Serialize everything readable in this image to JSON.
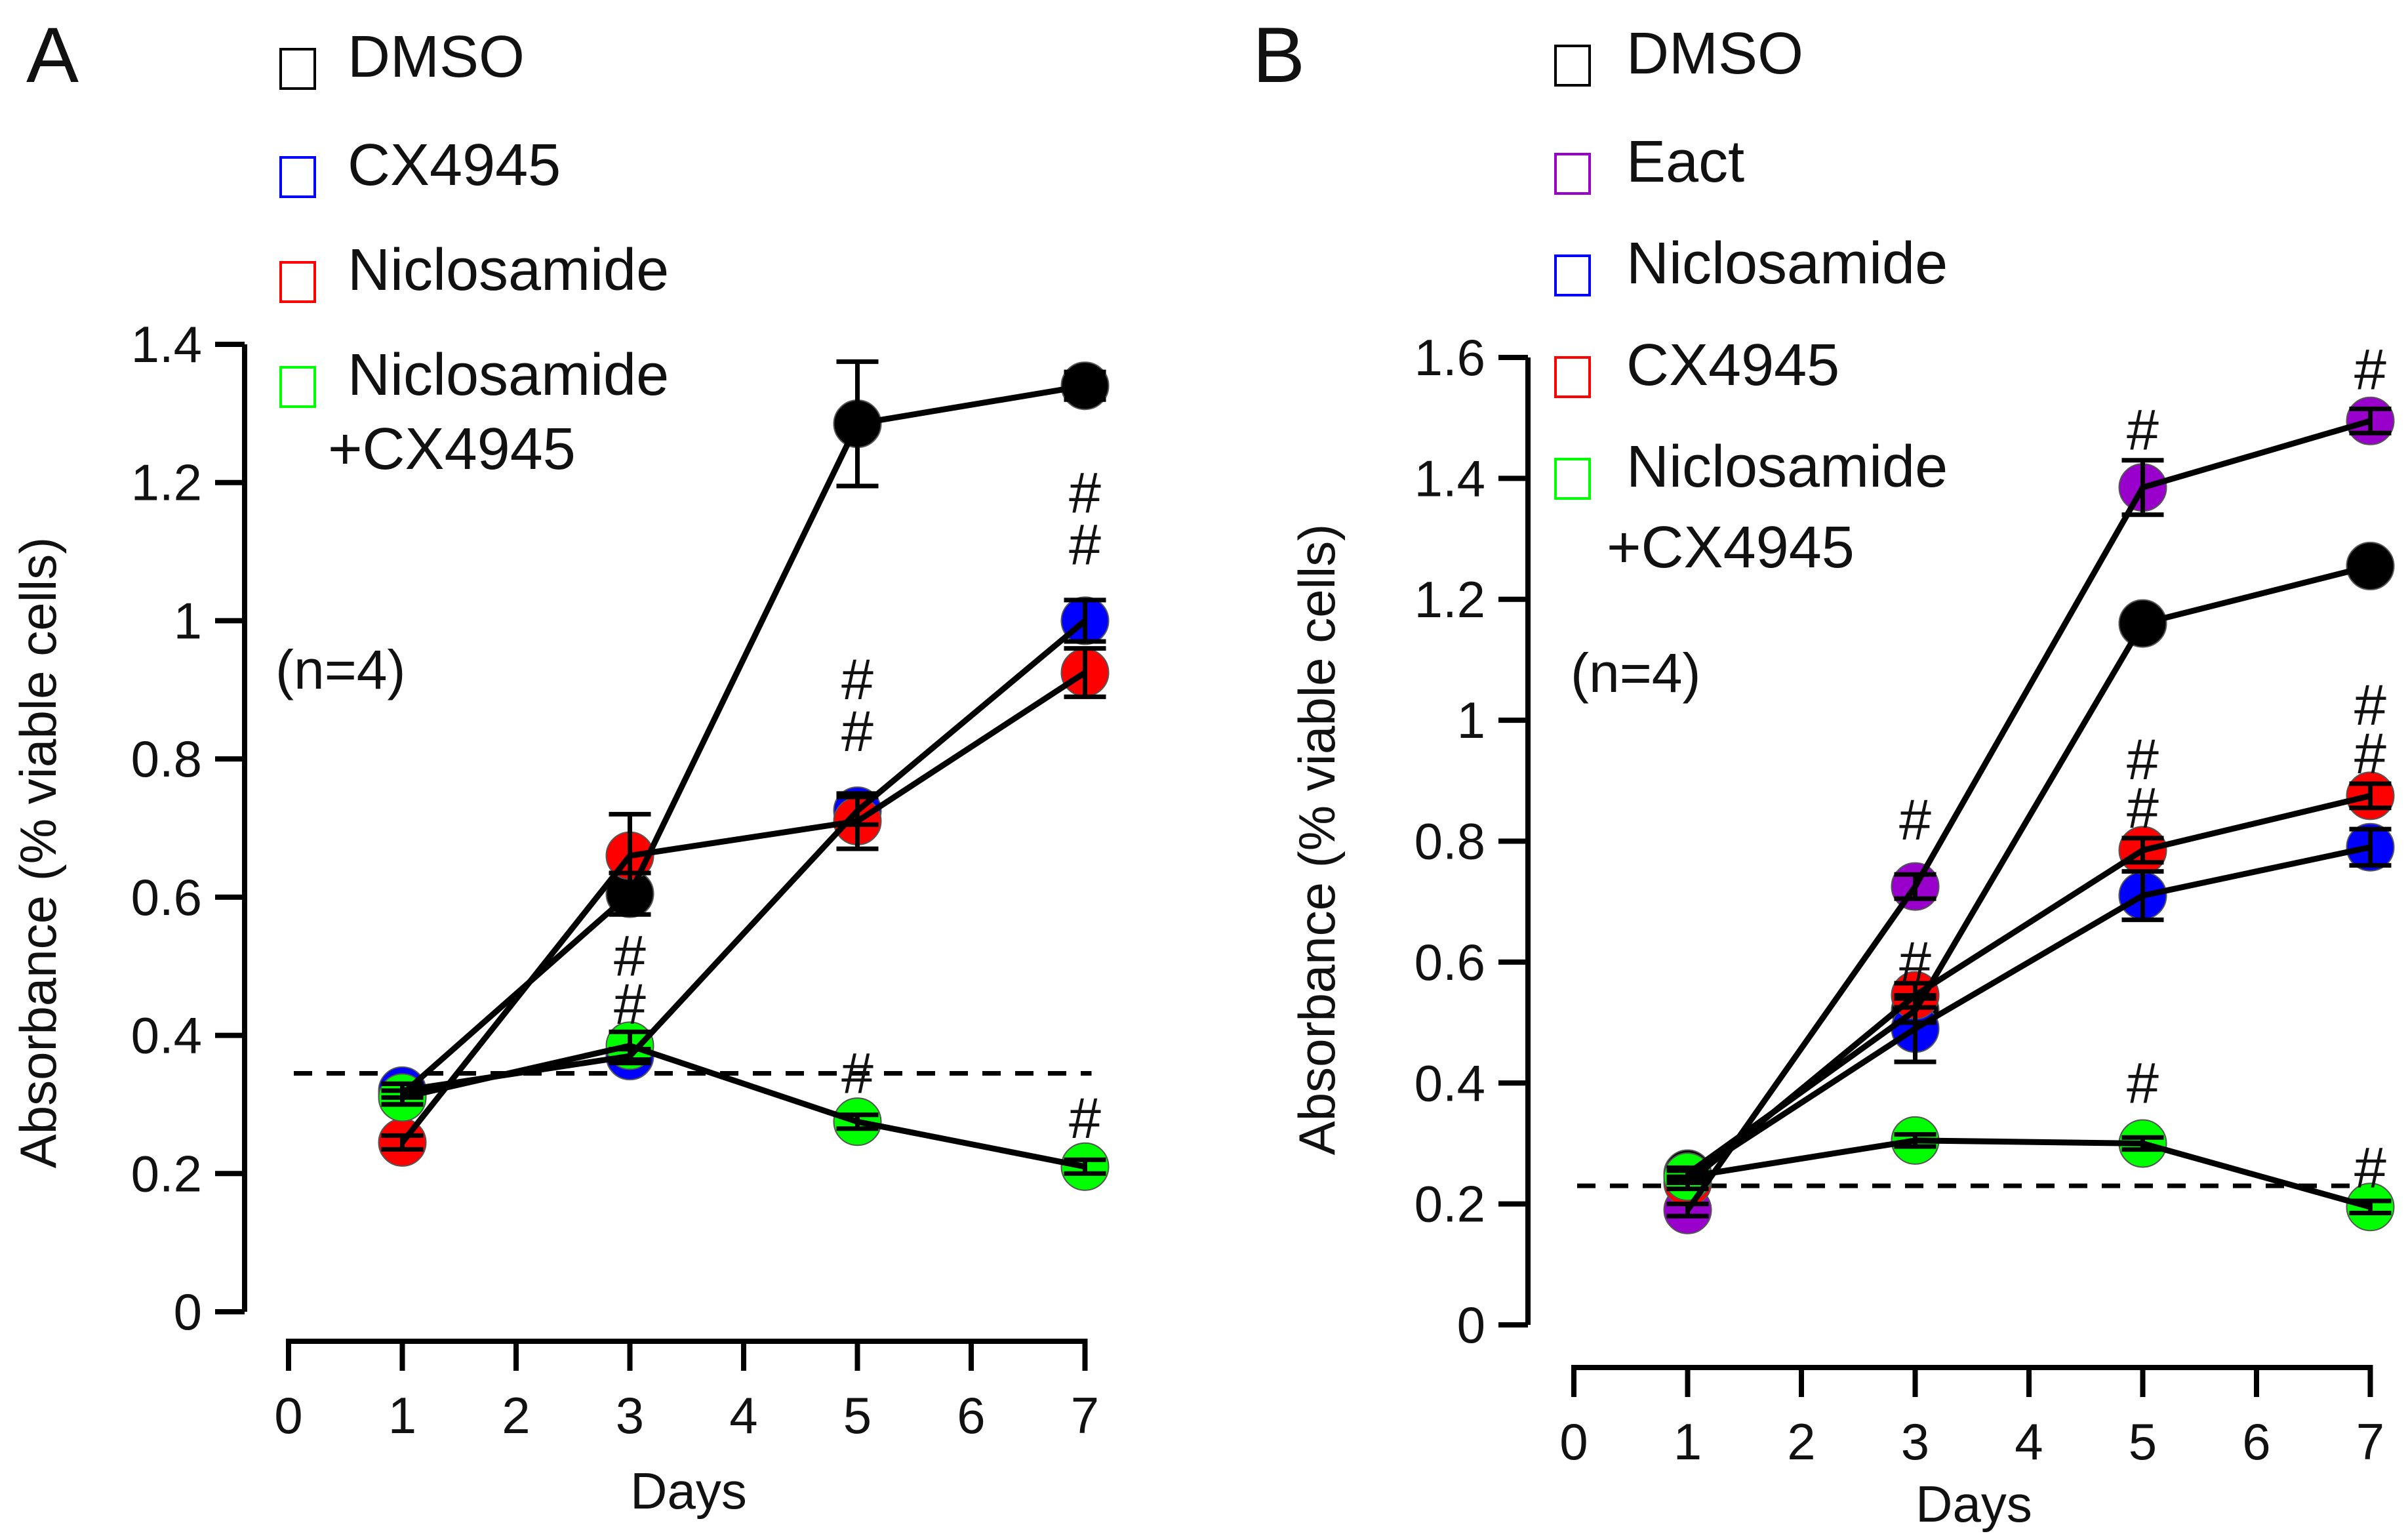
{
  "chart_data": [
    {
      "type": "line",
      "panel_label": "A",
      "annotation": "(n=4)",
      "xlabel": "Days",
      "ylabel": "Absorbance (% viable cells)",
      "xlim": [
        0,
        7
      ],
      "ylim": [
        0,
        1.4
      ],
      "xticks": [
        0,
        1,
        2,
        3,
        4,
        5,
        6,
        7
      ],
      "xtick_labels": [
        "0",
        "1",
        "2",
        "3",
        "4",
        "5",
        "6",
        "7"
      ],
      "yticks": [
        0,
        0.2,
        0.4,
        0.6,
        0.8,
        1,
        1.2,
        1.4
      ],
      "ytick_labels": [
        "0",
        "0.2",
        "0.4",
        "0.6",
        "0.8",
        "1",
        "1.2",
        "1.4"
      ],
      "baseline": 0.345,
      "legend": [
        {
          "label": "DMSO",
          "color": "#000000"
        },
        {
          "label": "CX4945",
          "color": "#0000ff"
        },
        {
          "label": "Niclosamide",
          "color": "#ff0000"
        },
        {
          "label": "Niclosamide",
          "label2": "+CX4945",
          "color": "#00ff00"
        }
      ],
      "series": [
        {
          "name": "DMSO",
          "color": "#000000",
          "x": [
            1,
            3,
            5,
            7
          ],
          "values": [
            0.315,
            0.605,
            1.285,
            1.34
          ],
          "errors": [
            0.015,
            0.03,
            0.09,
            0.02
          ]
        },
        {
          "name": "CX4945",
          "color": "#0000ff",
          "x": [
            1,
            3,
            5,
            7
          ],
          "values": [
            0.32,
            0.37,
            0.725,
            1.0
          ],
          "errors": [
            0.01,
            0.01,
            0.02,
            0.03
          ]
        },
        {
          "name": "Niclosamide",
          "color": "#ff0000",
          "x": [
            1,
            3,
            5,
            7
          ],
          "values": [
            0.245,
            0.66,
            0.71,
            0.925
          ],
          "errors": [
            0.01,
            0.06,
            0.04,
            0.035
          ]
        },
        {
          "name": "Niclosamide+CX4945",
          "color": "#00ff00",
          "x": [
            1,
            3,
            5,
            7
          ],
          "values": [
            0.31,
            0.385,
            0.275,
            0.21
          ],
          "errors": [
            0.01,
            0.02,
            0.01,
            0.01
          ]
        }
      ],
      "marks": [
        {
          "x": 3,
          "y": 0.445,
          "text": "#"
        },
        {
          "x": 3,
          "y": 0.515,
          "text": "#"
        },
        {
          "x": 5,
          "y": 0.84,
          "text": "#"
        },
        {
          "x": 5,
          "y": 0.915,
          "text": "#"
        },
        {
          "x": 5,
          "y": 0.345,
          "text": "#"
        },
        {
          "x": 7,
          "y": 1.11,
          "text": "#"
        },
        {
          "x": 7,
          "y": 1.185,
          "text": "#"
        },
        {
          "x": 7,
          "y": 0.28,
          "text": "#"
        }
      ]
    },
    {
      "type": "line",
      "panel_label": "B",
      "annotation": "(n=4)",
      "xlabel": "Days",
      "ylabel": "Absorbance (% viable cells)",
      "xlim": [
        0,
        7
      ],
      "ylim": [
        0,
        1.6
      ],
      "xticks": [
        0,
        1,
        2,
        3,
        4,
        5,
        6,
        7
      ],
      "xtick_labels": [
        "0",
        "1",
        "2",
        "3",
        "4",
        "5",
        "6",
        "7"
      ],
      "yticks": [
        0,
        0.2,
        0.4,
        0.6,
        0.8,
        1,
        1.2,
        1.4,
        1.6
      ],
      "ytick_labels": [
        "0",
        "0.2",
        "0.4",
        "0.6",
        "0.8",
        "1",
        "1.2",
        "1.4",
        "1.6"
      ],
      "baseline": 0.23,
      "legend": [
        {
          "label": "DMSO",
          "color": "#000000"
        },
        {
          "label": "Eact",
          "color": "#9900cc"
        },
        {
          "label": "Niclosamide",
          "color": "#0000ff"
        },
        {
          "label": "CX4945",
          "color": "#ff0000"
        },
        {
          "label": "Niclosamide",
          "label2": "+CX4945",
          "color": "#00ff00"
        }
      ],
      "series": [
        {
          "name": "DMSO",
          "color": "#000000",
          "x": [
            1,
            3,
            5,
            7
          ],
          "values": [
            0.25,
            0.52,
            1.16,
            1.255
          ],
          "errors": [
            0.01,
            0.02,
            0.01,
            0.01
          ]
        },
        {
          "name": "Eact",
          "color": "#9900cc",
          "x": [
            1,
            3,
            5,
            7
          ],
          "values": [
            0.19,
            0.725,
            1.385,
            1.495
          ],
          "errors": [
            0.01,
            0.02,
            0.045,
            0.02
          ]
        },
        {
          "name": "Niclosamide",
          "color": "#0000ff",
          "x": [
            1,
            3,
            5,
            7
          ],
          "values": [
            0.245,
            0.49,
            0.71,
            0.79
          ],
          "errors": [
            0.01,
            0.055,
            0.04,
            0.03
          ]
        },
        {
          "name": "CX4945",
          "color": "#ff0000",
          "x": [
            1,
            3,
            5,
            7
          ],
          "values": [
            0.235,
            0.545,
            0.785,
            0.875
          ],
          "errors": [
            0.01,
            0.02,
            0.02,
            0.02
          ]
        },
        {
          "name": "Niclosamide+CX4945",
          "color": "#00ff00",
          "x": [
            1,
            3,
            5,
            7
          ],
          "values": [
            0.245,
            0.305,
            0.3,
            0.195
          ],
          "errors": [
            0.01,
            0.01,
            0.01,
            0.01
          ]
        }
      ],
      "marks": [
        {
          "x": 3,
          "y": 0.835,
          "text": "#"
        },
        {
          "x": 3,
          "y": 0.6,
          "text": "#"
        },
        {
          "x": 5,
          "y": 1.48,
          "text": "#"
        },
        {
          "x": 5,
          "y": 0.855,
          "text": "#"
        },
        {
          "x": 5,
          "y": 0.935,
          "text": "#"
        },
        {
          "x": 5,
          "y": 0.4,
          "text": "#"
        },
        {
          "x": 7,
          "y": 1.58,
          "text": "#"
        },
        {
          "x": 7,
          "y": 0.945,
          "text": "#"
        },
        {
          "x": 7,
          "y": 1.025,
          "text": "#"
        },
        {
          "x": 7,
          "y": 0.26,
          "text": "#"
        }
      ]
    }
  ]
}
